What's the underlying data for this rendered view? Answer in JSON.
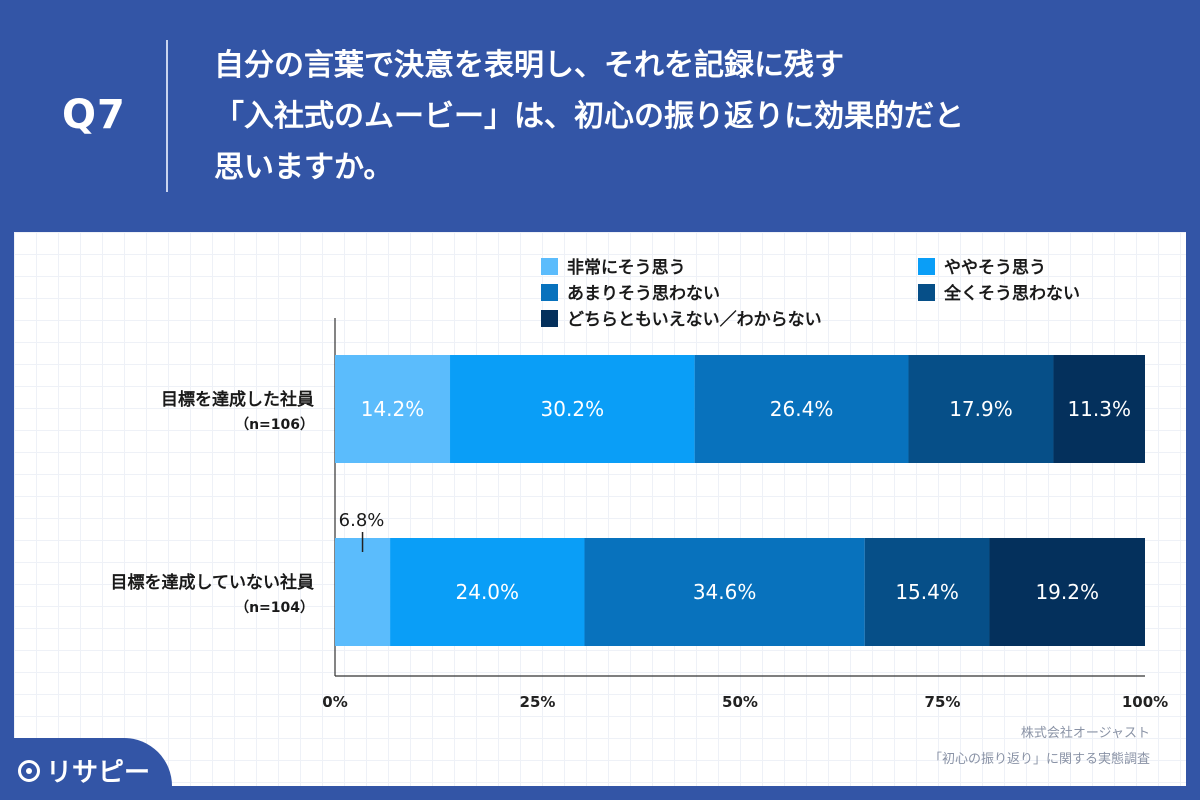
{
  "header": {
    "question_number": "Q7",
    "question_lines": [
      "自分の言葉で決意を表明し、それを記録に残す",
      "「入社式のムービー」は、初心の振り返りに効果的だと",
      "思いますか。"
    ]
  },
  "chart_data": {
    "type": "bar",
    "orientation": "horizontal-stacked-100",
    "categories": [
      {
        "label": "目標を達成した社員",
        "sub": "（n=106）"
      },
      {
        "label": "目標を達成していない社員",
        "sub": "（n=104）"
      }
    ],
    "series": [
      {
        "name": "非常にそう思う",
        "color": "#5bbcfc",
        "values": [
          14.2,
          6.8
        ]
      },
      {
        "name": "ややそう思う",
        "color": "#0a9ef7",
        "values": [
          30.2,
          24.0
        ]
      },
      {
        "name": "あまりそう思わない",
        "color": "#0872bd",
        "values": [
          26.4,
          34.6
        ]
      },
      {
        "name": "全くそう思わない",
        "color": "#064f88",
        "values": [
          17.9,
          15.4
        ]
      },
      {
        "name": "どちらともいえない／わからない",
        "color": "#04305c",
        "values": [
          11.3,
          19.2
        ]
      }
    ],
    "data_labels": [
      [
        "14.2%",
        "30.2%",
        "26.4%",
        "17.9%",
        "11.3%"
      ],
      [
        "6.8%",
        "24.0%",
        "34.6%",
        "15.4%",
        "19.2%"
      ]
    ],
    "xlim": [
      0,
      100
    ],
    "x_ticks": [
      {
        "value": 0,
        "label": "0%"
      },
      {
        "value": 25,
        "label": "25%"
      },
      {
        "value": 50,
        "label": "50%"
      },
      {
        "value": 75,
        "label": "75%"
      },
      {
        "value": 100,
        "label": "100%"
      }
    ],
    "legend_position": "top-right"
  },
  "footer": {
    "source_line1": "株式会社オージャスト",
    "source_line2": "「初心の振り返り」に関する実態調査",
    "brand": "リサピー"
  }
}
